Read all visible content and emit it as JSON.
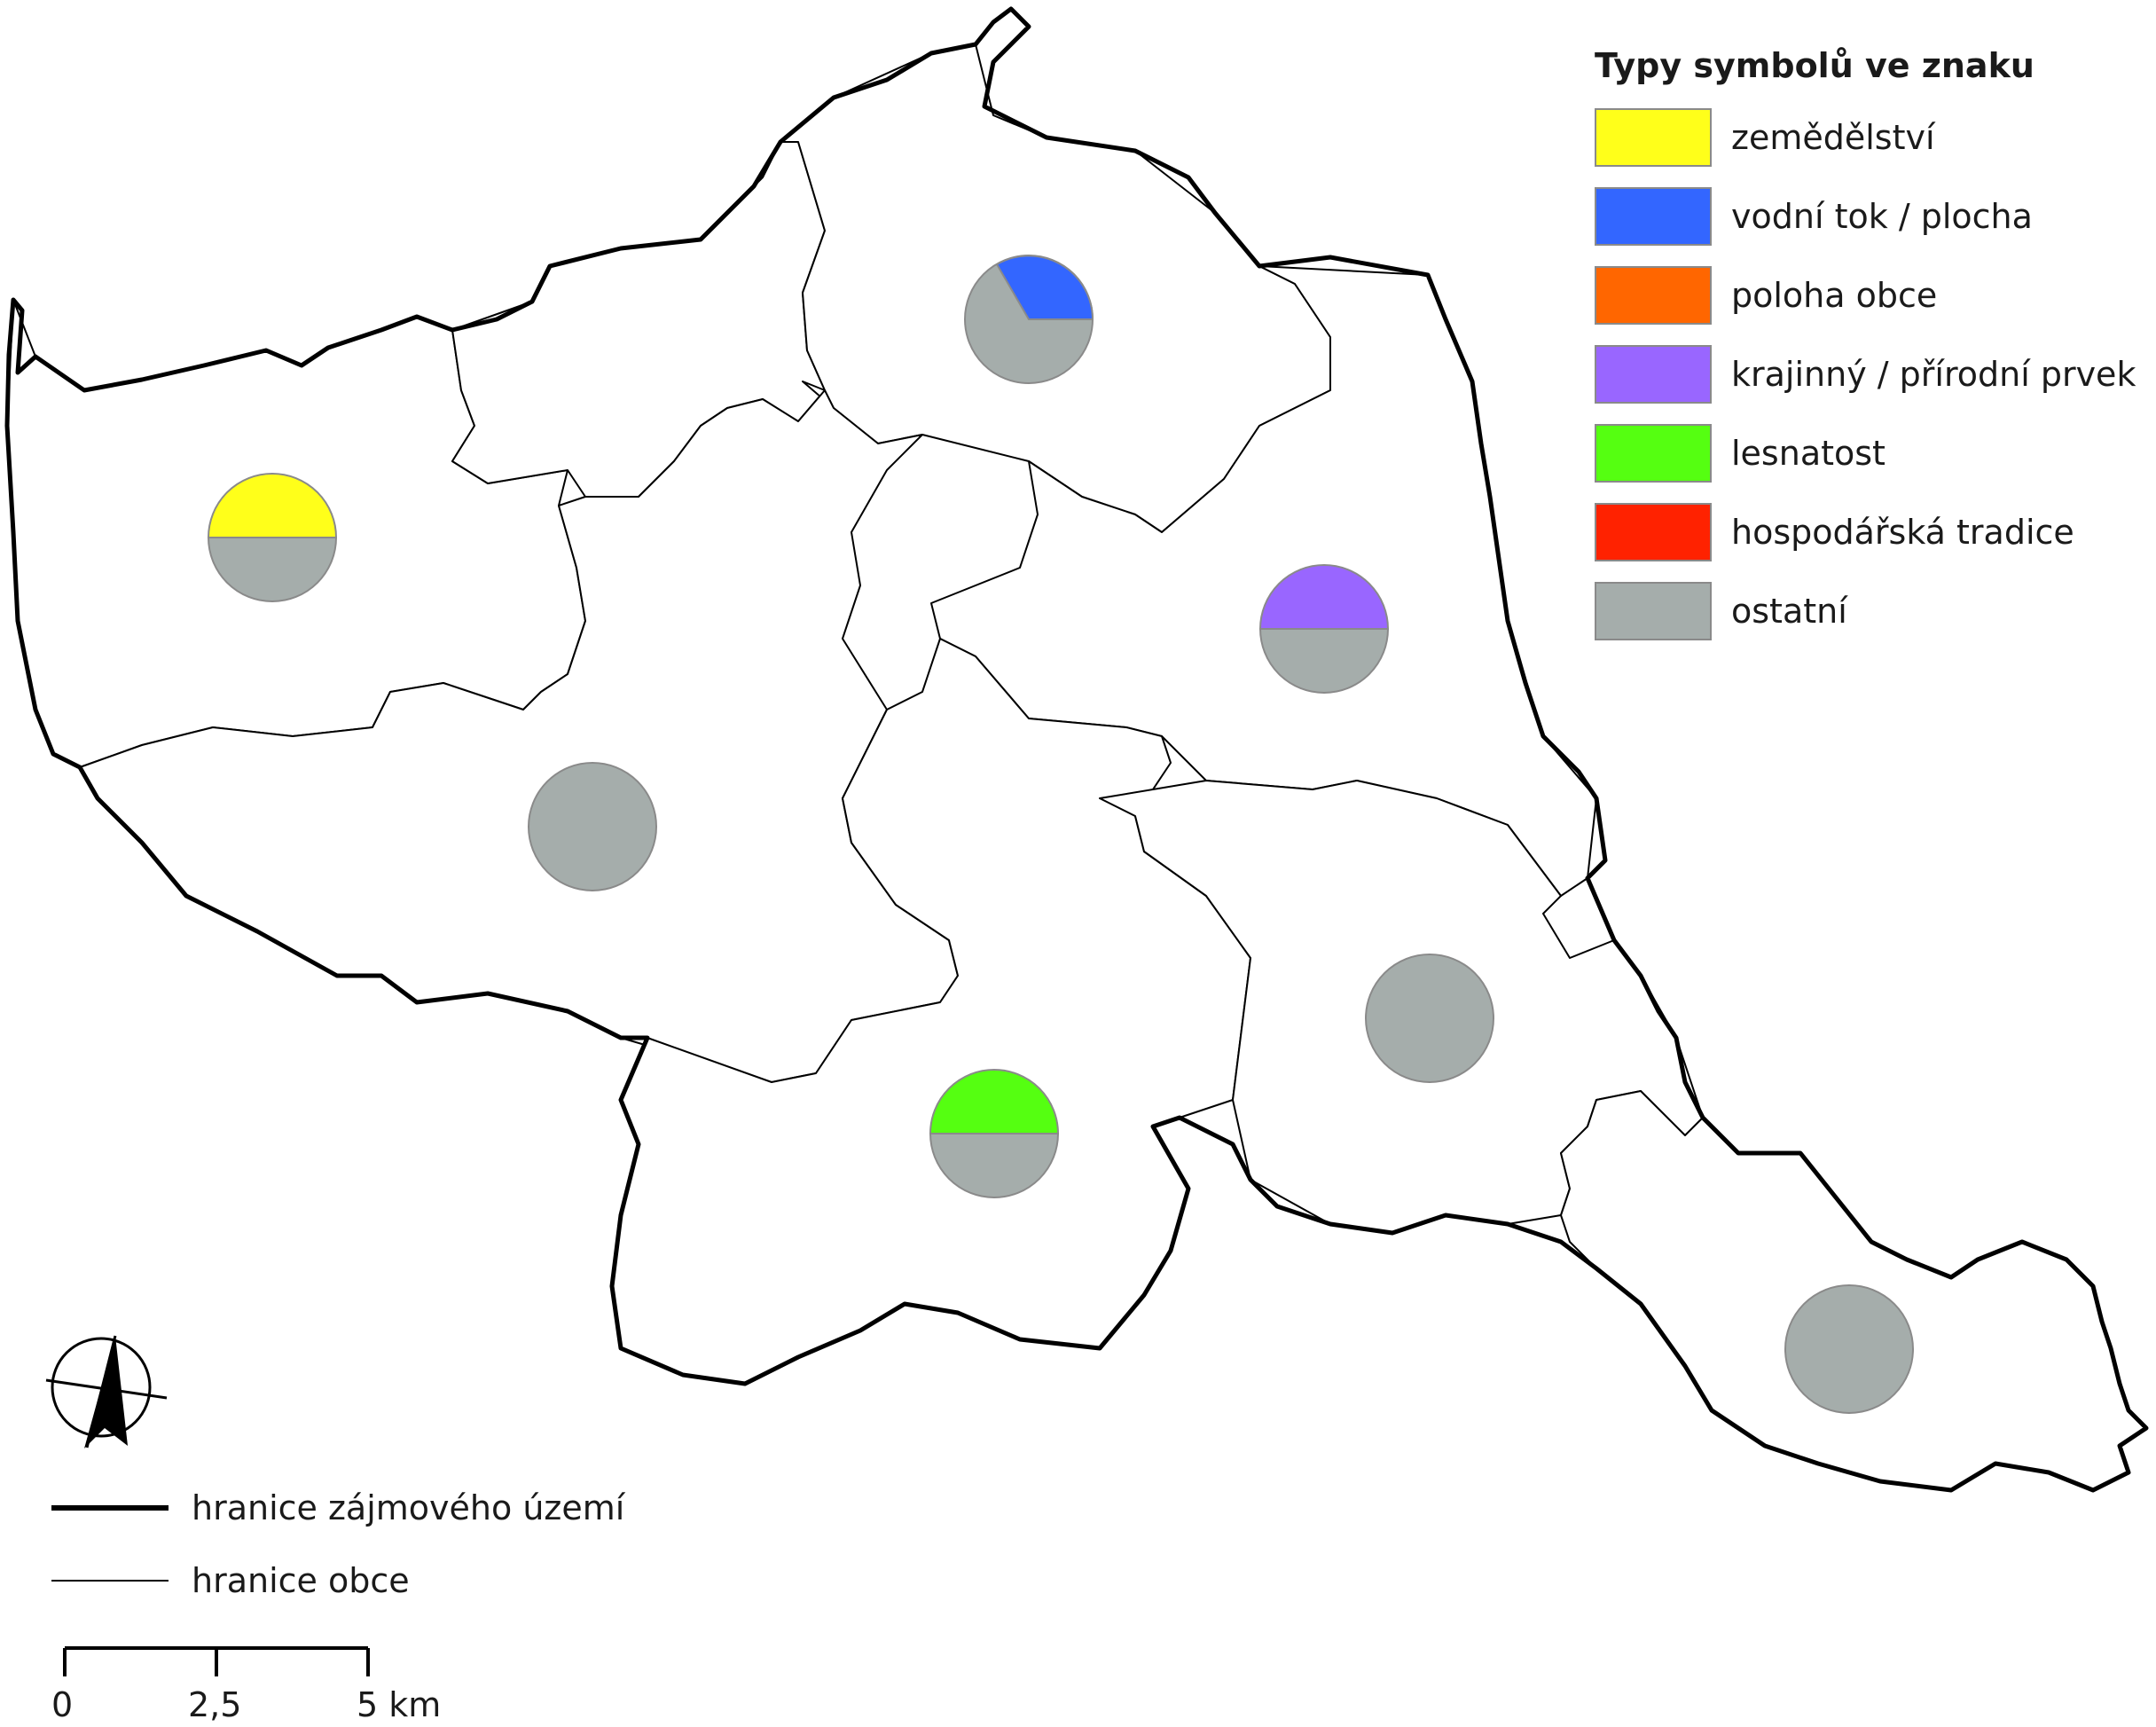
{
  "legend": {
    "title": "Typy symbolů ve znaku",
    "items": [
      {
        "label": "zemědělství",
        "color": "#ffff1a"
      },
      {
        "label": "vodní tok / plocha",
        "color": "#3366ff"
      },
      {
        "label": "poloha obce",
        "color": "#ff6600"
      },
      {
        "label": "krajinný / přírodní prvek",
        "color": "#9966ff"
      },
      {
        "label": "lesnatost",
        "color": "#55ff11"
      },
      {
        "label": "hospodářská tradice",
        "color": "#ff2200"
      },
      {
        "label": "ostatní",
        "color": "#a5adab"
      }
    ]
  },
  "line_legend": {
    "study_area_boundary": "hranice zájmového území",
    "municipality_boundary": "hranice obce"
  },
  "scale_bar": {
    "ticks": [
      "0",
      "2,5",
      "5 km"
    ]
  },
  "north_arrow": {
    "icon": "north-arrow-icon"
  },
  "symbols": [
    {
      "name": "pie-west",
      "parts": [
        {
          "type": "zemědělství",
          "fraction": 0.5
        },
        {
          "type": "ostatní",
          "fraction": 0.5
        }
      ]
    },
    {
      "name": "pie-north",
      "parts": [
        {
          "type": "vodní tok / plocha",
          "fraction": 0.33
        },
        {
          "type": "ostatní",
          "fraction": 0.67
        }
      ]
    },
    {
      "name": "pie-east",
      "parts": [
        {
          "type": "krajinný / přírodní prvek",
          "fraction": 0.5
        },
        {
          "type": "ostatní",
          "fraction": 0.5
        }
      ]
    },
    {
      "name": "pie-center",
      "parts": [
        {
          "type": "ostatní",
          "fraction": 1.0
        }
      ]
    },
    {
      "name": "pie-south",
      "parts": [
        {
          "type": "lesnatost",
          "fraction": 0.5
        },
        {
          "type": "ostatní",
          "fraction": 0.5
        }
      ]
    },
    {
      "name": "pie-southeast",
      "parts": [
        {
          "type": "ostatní",
          "fraction": 1.0
        }
      ]
    },
    {
      "name": "pie-far-southeast",
      "parts": [
        {
          "type": "ostatní",
          "fraction": 1.0
        }
      ]
    }
  ]
}
